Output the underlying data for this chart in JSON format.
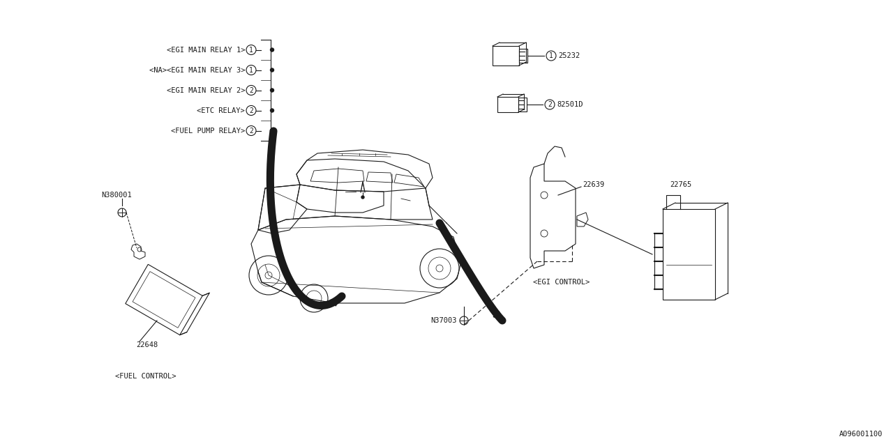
{
  "bg_color": "#ffffff",
  "line_color": "#1a1a1a",
  "diagram_code": "A096001100",
  "relay_labels": [
    "<EGI MAIN RELAY 1>",
    "<NA><EGI MAIN RELAY 3>",
    "<EGI MAIN RELAY 2>",
    "<ETC RELAY>",
    "<FUEL PUMP RELAY>"
  ],
  "relay_numbers": [
    "1",
    "1",
    "2",
    "2",
    "2"
  ],
  "part_numbers_right": [
    "25232",
    "82501D"
  ],
  "part_ref_right": [
    "1",
    "2"
  ],
  "part_number_fuel": "22648",
  "part_label_fuel": "<FUEL CONTROL>",
  "part_number_n380001": "N380001",
  "part_number_22639": "22639",
  "part_number_22765": "22765",
  "part_number_n37003": "N37003",
  "part_label_egi": "<EGI CONTROL>",
  "font_size": 7.5,
  "lw": 0.8
}
